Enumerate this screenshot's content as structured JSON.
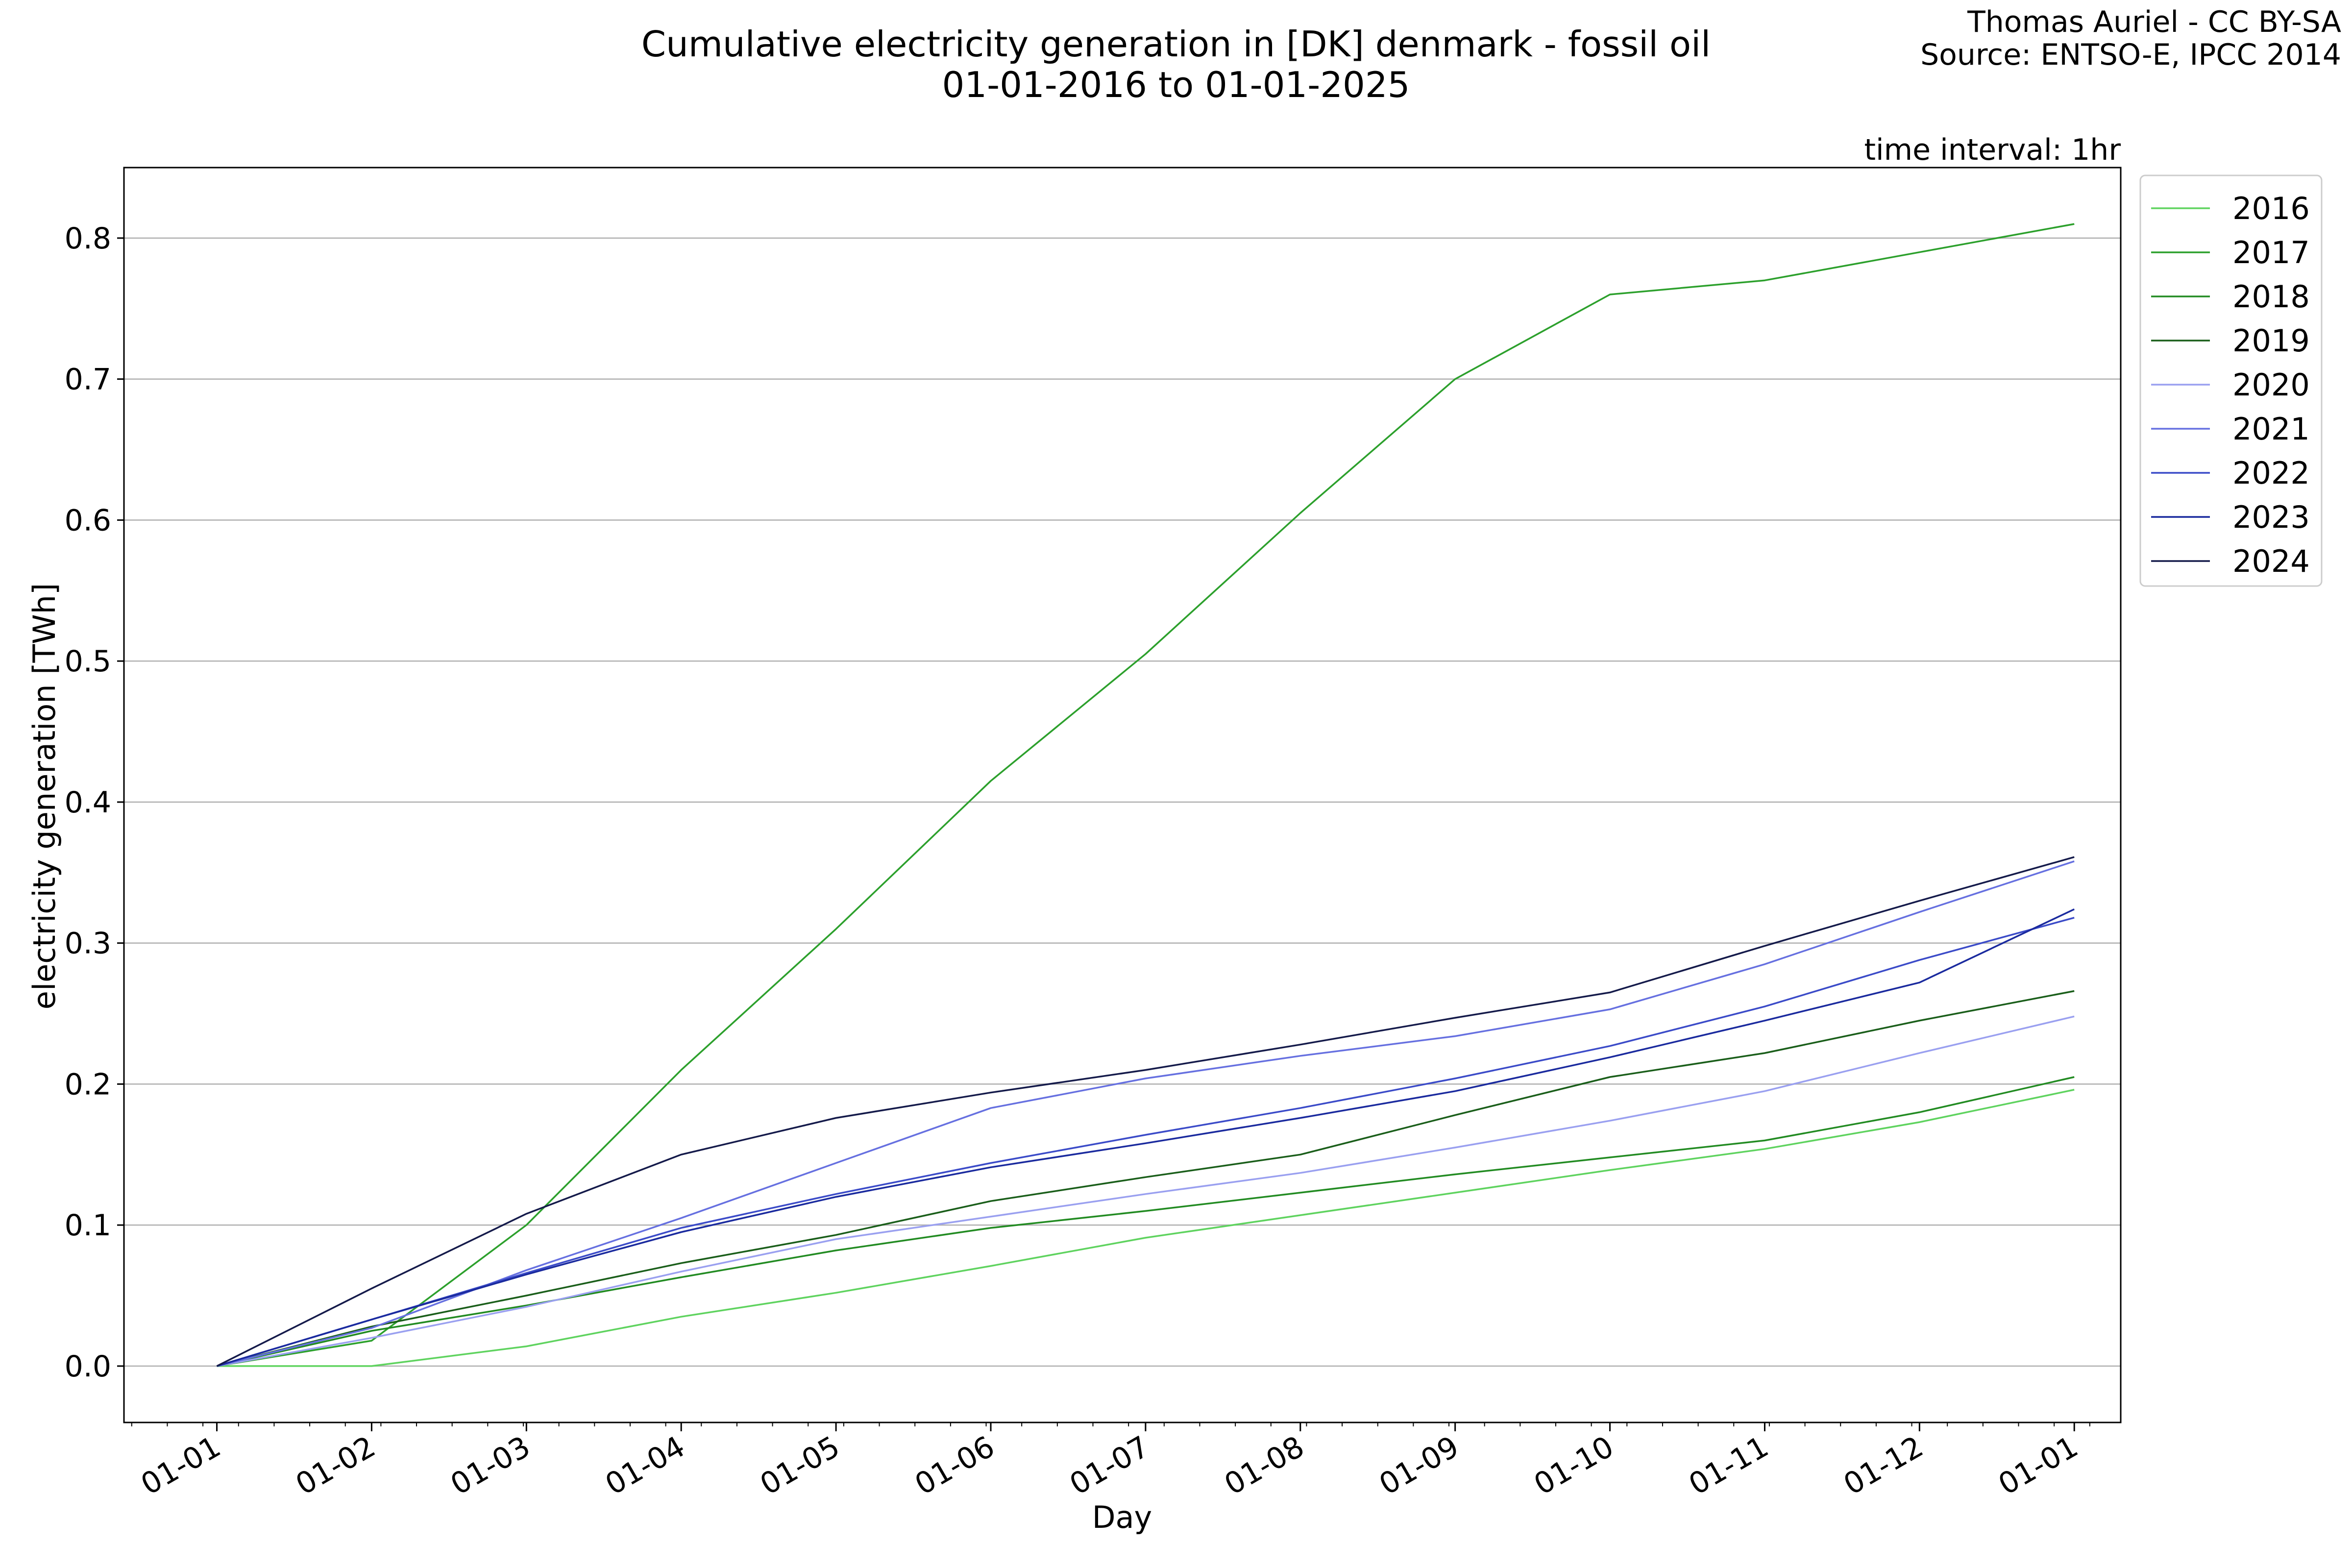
{
  "header": {
    "title_line1": "Cumulative electricity generation in [DK] denmark - fossil oil",
    "title_line2": "01-01-2016 to 01-01-2025",
    "credit_line1": "Thomas Auriel - CC BY-SA",
    "credit_line2": "Source: ENTSO-E, IPCC 2014",
    "interval_note": "time interval: 1hr"
  },
  "chart_data": {
    "type": "line",
    "title": "Cumulative electricity generation in [DK] denmark - fossil oil",
    "subtitle": "01-01-2016 to 01-01-2025",
    "xlabel": "Day",
    "ylabel": "electricity generation [TWh]",
    "x_unit": "month of year (1 = 01-01, 13 = following 01-01)",
    "xlim": [
      0.4,
      13.3
    ],
    "ylim": [
      -0.04,
      0.85
    ],
    "x_ticks": [
      {
        "x": 1,
        "label": "01-01"
      },
      {
        "x": 2,
        "label": "01-02"
      },
      {
        "x": 3,
        "label": "01-03"
      },
      {
        "x": 4,
        "label": "01-04"
      },
      {
        "x": 5,
        "label": "01-05"
      },
      {
        "x": 6,
        "label": "01-06"
      },
      {
        "x": 7,
        "label": "01-07"
      },
      {
        "x": 8,
        "label": "01-08"
      },
      {
        "x": 9,
        "label": "01-09"
      },
      {
        "x": 10,
        "label": "01-10"
      },
      {
        "x": 11,
        "label": "01-11"
      },
      {
        "x": 12,
        "label": "01-12"
      },
      {
        "x": 13,
        "label": "01-01"
      }
    ],
    "y_ticks": [
      {
        "y": 0.0,
        "label": "0.0"
      },
      {
        "y": 0.1,
        "label": "0.1"
      },
      {
        "y": 0.2,
        "label": "0.2"
      },
      {
        "y": 0.3,
        "label": "0.3"
      },
      {
        "y": 0.4,
        "label": "0.4"
      },
      {
        "y": 0.5,
        "label": "0.5"
      },
      {
        "y": 0.6,
        "label": "0.6"
      },
      {
        "y": 0.7,
        "label": "0.7"
      },
      {
        "y": 0.8,
        "label": "0.8"
      }
    ],
    "grid": "horizontal",
    "legend_position": "outside-right-top",
    "x": [
      1,
      2,
      3,
      4,
      5,
      6,
      7,
      8,
      9,
      10,
      11,
      12,
      13
    ],
    "series": [
      {
        "name": "2016",
        "color": "#5fd35f",
        "values": [
          0.0,
          0.0,
          0.014,
          0.035,
          0.052,
          0.071,
          0.091,
          0.107,
          0.123,
          0.139,
          0.154,
          0.173,
          0.196
        ]
      },
      {
        "name": "2017",
        "color": "#2ca02c",
        "values": [
          0.0,
          0.018,
          0.1,
          0.21,
          0.31,
          0.415,
          0.505,
          0.605,
          0.7,
          0.76,
          0.77,
          0.79,
          0.81
        ]
      },
      {
        "name": "2018",
        "color": "#228b22",
        "values": [
          0.0,
          0.025,
          0.043,
          0.063,
          0.082,
          0.098,
          0.11,
          0.123,
          0.136,
          0.148,
          0.16,
          0.18,
          0.205
        ]
      },
      {
        "name": "2019",
        "color": "#1a5e1a",
        "values": [
          0.0,
          0.028,
          0.05,
          0.073,
          0.093,
          0.117,
          0.134,
          0.15,
          0.178,
          0.205,
          0.222,
          0.245,
          0.266
        ]
      },
      {
        "name": "2020",
        "color": "#9aa0f0",
        "values": [
          0.0,
          0.02,
          0.042,
          0.067,
          0.09,
          0.106,
          0.122,
          0.137,
          0.155,
          0.174,
          0.195,
          0.222,
          0.248
        ]
      },
      {
        "name": "2021",
        "color": "#6670e0",
        "values": [
          0.0,
          0.027,
          0.068,
          0.105,
          0.144,
          0.183,
          0.204,
          0.22,
          0.234,
          0.253,
          0.285,
          0.322,
          0.358
        ]
      },
      {
        "name": "2022",
        "color": "#3b4bc8",
        "values": [
          0.0,
          0.033,
          0.066,
          0.098,
          0.122,
          0.144,
          0.164,
          0.183,
          0.204,
          0.227,
          0.255,
          0.288,
          0.318
        ]
      },
      {
        "name": "2023",
        "color": "#1a2a9e",
        "values": [
          0.0,
          0.033,
          0.065,
          0.095,
          0.12,
          0.141,
          0.158,
          0.176,
          0.195,
          0.219,
          0.245,
          0.272,
          0.324
        ]
      },
      {
        "name": "2024",
        "color": "#141a4a",
        "values": [
          0.0,
          0.055,
          0.108,
          0.15,
          0.176,
          0.194,
          0.21,
          0.228,
          0.247,
          0.265,
          0.298,
          0.33,
          0.361
        ]
      }
    ]
  }
}
